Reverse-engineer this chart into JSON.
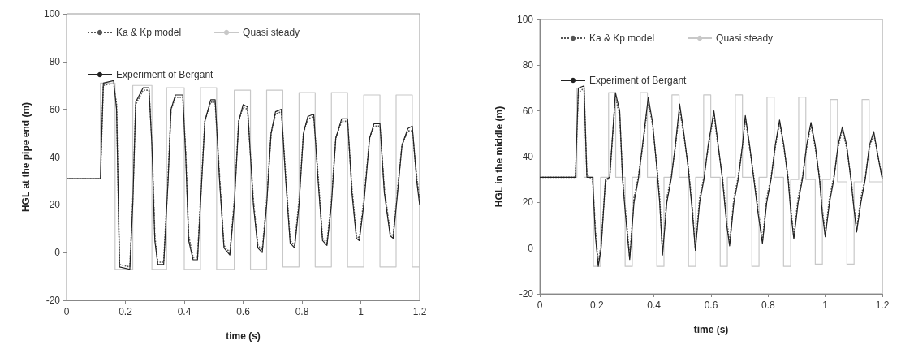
{
  "chart_data": [
    {
      "type": "line",
      "xlabel": "time (s)",
      "ylabel": "HGL at the pipe end (m)",
      "xlim": [
        0,
        1.2
      ],
      "xticks": [
        0,
        0.2,
        0.4,
        0.6,
        0.8,
        1,
        1.2
      ],
      "ylim": [
        -20,
        100
      ],
      "yticks": [
        -20,
        0,
        20,
        40,
        60,
        80,
        100
      ],
      "grid": false,
      "legend": "top left",
      "marker": "none",
      "series": [
        {
          "name": "Ka & Kp model",
          "color": "#555555",
          "line_style": "dotted",
          "x": [
            0,
            0.115,
            0.125,
            0.16,
            0.17,
            0.18,
            0.215,
            0.225,
            0.235,
            0.26,
            0.28,
            0.29,
            0.3,
            0.31,
            0.33,
            0.345,
            0.355,
            0.37,
            0.395,
            0.405,
            0.415,
            0.43,
            0.445,
            0.455,
            0.47,
            0.49,
            0.505,
            0.52,
            0.535,
            0.555,
            0.57,
            0.585,
            0.6,
            0.615,
            0.635,
            0.65,
            0.665,
            0.68,
            0.695,
            0.71,
            0.73,
            0.745,
            0.76,
            0.775,
            0.79,
            0.805,
            0.82,
            0.84,
            0.855,
            0.87,
            0.885,
            0.9,
            0.915,
            0.935,
            0.955,
            0.97,
            0.985,
            0.995,
            1.01,
            1.03,
            1.045,
            1.065,
            1.08,
            1.1,
            1.11,
            1.125,
            1.14,
            1.16,
            1.175,
            1.19,
            1.2
          ],
          "values": [
            31,
            31,
            70,
            71,
            62,
            -5,
            -6,
            22,
            62,
            68,
            68,
            47,
            7,
            -4,
            -4,
            32,
            60,
            65,
            65,
            42,
            7,
            -2,
            -2,
            22,
            55,
            63,
            63,
            32,
            3,
            0,
            22,
            55,
            61,
            60,
            22,
            3,
            1,
            22,
            50,
            58,
            59,
            32,
            5,
            3,
            22,
            50,
            56,
            57,
            32,
            6,
            4,
            22,
            48,
            55,
            55,
            27,
            7,
            6,
            22,
            48,
            53,
            53,
            27,
            8,
            7,
            27,
            45,
            51,
            51,
            32,
            22
          ]
        },
        {
          "name": "Quasi steady",
          "color": "#c8c8c8",
          "line_style": "solid",
          "x": [
            0,
            0.115,
            0.115,
            0.165,
            0.165,
            0.225,
            0.225,
            0.29,
            0.29,
            0.34,
            0.34,
            0.4,
            0.4,
            0.455,
            0.455,
            0.51,
            0.51,
            0.57,
            0.57,
            0.625,
            0.625,
            0.68,
            0.68,
            0.735,
            0.735,
            0.79,
            0.79,
            0.845,
            0.845,
            0.9,
            0.9,
            0.955,
            0.955,
            1.01,
            1.01,
            1.065,
            1.065,
            1.12,
            1.12,
            1.175,
            1.175,
            1.2
          ],
          "values": [
            31,
            31,
            71,
            71,
            -7,
            -7,
            70,
            70,
            -7,
            -7,
            69,
            69,
            -7,
            -7,
            69,
            69,
            -7,
            -7,
            68,
            68,
            -7,
            -7,
            68,
            68,
            -6,
            -6,
            67,
            67,
            -6,
            -6,
            67,
            67,
            -6,
            -6,
            66,
            66,
            -6,
            -6,
            66,
            66,
            -6,
            -6
          ]
        },
        {
          "name": "Experiment of Bergant",
          "color": "#222222",
          "line_style": "solid",
          "x": [
            0,
            0.115,
            0.125,
            0.16,
            0.17,
            0.18,
            0.215,
            0.225,
            0.235,
            0.26,
            0.28,
            0.29,
            0.3,
            0.31,
            0.33,
            0.345,
            0.355,
            0.37,
            0.395,
            0.405,
            0.415,
            0.43,
            0.445,
            0.455,
            0.47,
            0.49,
            0.505,
            0.52,
            0.535,
            0.555,
            0.57,
            0.585,
            0.6,
            0.615,
            0.635,
            0.65,
            0.665,
            0.68,
            0.695,
            0.71,
            0.73,
            0.745,
            0.76,
            0.775,
            0.79,
            0.805,
            0.82,
            0.84,
            0.855,
            0.87,
            0.885,
            0.9,
            0.915,
            0.935,
            0.955,
            0.97,
            0.985,
            0.995,
            1.01,
            1.03,
            1.045,
            1.065,
            1.08,
            1.1,
            1.11,
            1.125,
            1.14,
            1.16,
            1.175,
            1.19,
            1.2
          ],
          "values": [
            31,
            31,
            71,
            72,
            60,
            -6,
            -7,
            20,
            63,
            69,
            69,
            45,
            5,
            -5,
            -5,
            30,
            60,
            66,
            66,
            40,
            5,
            -3,
            -3,
            20,
            55,
            64,
            64,
            30,
            2,
            -1,
            20,
            55,
            62,
            61,
            20,
            2,
            0,
            20,
            50,
            59,
            60,
            30,
            4,
            2,
            20,
            50,
            57,
            58,
            30,
            5,
            3,
            20,
            48,
            56,
            56,
            25,
            6,
            5,
            20,
            48,
            54,
            54,
            25,
            7,
            6,
            25,
            45,
            52,
            53,
            30,
            20
          ]
        }
      ]
    },
    {
      "type": "line",
      "xlabel": "time (s)",
      "ylabel": "HGL in the middle (m)",
      "xlim": [
        0,
        1.2
      ],
      "xticks": [
        0,
        0.2,
        0.4,
        0.6,
        0.8,
        1,
        1.2
      ],
      "ylim": [
        -20,
        100
      ],
      "yticks": [
        -20,
        0,
        20,
        40,
        60,
        80,
        100
      ],
      "grid": false,
      "legend": "top left",
      "marker": "none",
      "series": [
        {
          "name": "Ka & Kp model",
          "color": "#555555",
          "line_style": "dotted",
          "x": [
            0,
            0.125,
            0.135,
            0.155,
            0.165,
            0.185,
            0.195,
            0.205,
            0.215,
            0.23,
            0.245,
            0.265,
            0.28,
            0.29,
            0.3,
            0.315,
            0.33,
            0.345,
            0.36,
            0.38,
            0.395,
            0.41,
            0.42,
            0.43,
            0.445,
            0.46,
            0.475,
            0.49,
            0.505,
            0.52,
            0.535,
            0.545,
            0.56,
            0.575,
            0.59,
            0.61,
            0.625,
            0.64,
            0.655,
            0.665,
            0.68,
            0.695,
            0.71,
            0.72,
            0.735,
            0.75,
            0.765,
            0.78,
            0.795,
            0.81,
            0.825,
            0.84,
            0.855,
            0.87,
            0.88,
            0.89,
            0.905,
            0.92,
            0.935,
            0.95,
            0.965,
            0.98,
            0.99,
            1.0,
            1.015,
            1.03,
            1.045,
            1.06,
            1.075,
            1.09,
            1.1,
            1.11,
            1.125,
            1.14,
            1.155,
            1.17,
            1.185,
            1.2
          ],
          "values": [
            31,
            31,
            68,
            70,
            32,
            30,
            8,
            -7,
            2,
            29,
            31,
            66,
            58,
            31,
            17,
            -4,
            22,
            31,
            44,
            64,
            54,
            36,
            22,
            -2,
            22,
            31,
            44,
            61,
            49,
            36,
            17,
            0,
            22,
            31,
            44,
            59,
            44,
            31,
            12,
            2,
            22,
            31,
            44,
            57,
            44,
            31,
            17,
            3,
            22,
            31,
            44,
            55,
            44,
            31,
            17,
            5,
            22,
            31,
            44,
            54,
            44,
            31,
            17,
            6,
            22,
            31,
            44,
            52,
            44,
            31,
            19,
            8,
            22,
            31,
            44,
            50,
            40,
            31
          ]
        },
        {
          "name": "Quasi steady",
          "color": "#c8c8c8",
          "line_style": "solid",
          "x": [
            0,
            0.13,
            0.13,
            0.155,
            0.155,
            0.188,
            0.188,
            0.213,
            0.213,
            0.241,
            0.241,
            0.266,
            0.266,
            0.299,
            0.299,
            0.324,
            0.324,
            0.352,
            0.352,
            0.377,
            0.377,
            0.41,
            0.41,
            0.435,
            0.435,
            0.463,
            0.463,
            0.488,
            0.488,
            0.521,
            0.521,
            0.546,
            0.546,
            0.574,
            0.574,
            0.599,
            0.599,
            0.632,
            0.632,
            0.657,
            0.657,
            0.685,
            0.685,
            0.71,
            0.71,
            0.743,
            0.743,
            0.768,
            0.768,
            0.796,
            0.796,
            0.821,
            0.821,
            0.854,
            0.854,
            0.879,
            0.879,
            0.907,
            0.907,
            0.932,
            0.932,
            0.965,
            0.965,
            0.99,
            0.99,
            1.018,
            1.018,
            1.043,
            1.043,
            1.076,
            1.076,
            1.101,
            1.101,
            1.129,
            1.129,
            1.154,
            1.154,
            1.2
          ],
          "values": [
            31,
            31,
            70,
            70,
            31,
            31,
            -8,
            -8,
            31,
            31,
            68,
            68,
            31,
            31,
            -8,
            -8,
            31,
            31,
            68,
            68,
            31,
            31,
            -8,
            -8,
            31,
            31,
            67,
            67,
            31,
            31,
            -8,
            -8,
            31,
            31,
            67,
            67,
            31,
            31,
            -8,
            -8,
            31,
            31,
            67,
            67,
            31,
            31,
            -8,
            -8,
            31,
            31,
            66,
            66,
            31,
            31,
            -8,
            -8,
            30,
            30,
            66,
            66,
            30,
            30,
            -7,
            -7,
            30,
            30,
            65,
            65,
            29,
            29,
            -7,
            -7,
            29,
            29,
            65,
            65,
            29,
            29
          ]
        },
        {
          "name": "Experiment of Bergant",
          "color": "#222222",
          "line_style": "solid",
          "x": [
            0,
            0.125,
            0.135,
            0.155,
            0.165,
            0.185,
            0.195,
            0.205,
            0.215,
            0.23,
            0.245,
            0.265,
            0.28,
            0.29,
            0.3,
            0.315,
            0.33,
            0.345,
            0.36,
            0.38,
            0.395,
            0.41,
            0.42,
            0.43,
            0.445,
            0.46,
            0.475,
            0.49,
            0.505,
            0.52,
            0.535,
            0.545,
            0.56,
            0.575,
            0.59,
            0.61,
            0.625,
            0.64,
            0.655,
            0.665,
            0.68,
            0.695,
            0.71,
            0.72,
            0.735,
            0.75,
            0.765,
            0.78,
            0.795,
            0.81,
            0.825,
            0.84,
            0.855,
            0.87,
            0.88,
            0.89,
            0.905,
            0.92,
            0.935,
            0.95,
            0.965,
            0.98,
            0.99,
            1.0,
            1.015,
            1.03,
            1.045,
            1.06,
            1.075,
            1.09,
            1.1,
            1.11,
            1.125,
            1.14,
            1.155,
            1.17,
            1.185,
            1.2
          ],
          "values": [
            31,
            31,
            70,
            71,
            31,
            31,
            5,
            -8,
            0,
            30,
            31,
            68,
            60,
            30,
            15,
            -5,
            20,
            30,
            45,
            66,
            55,
            35,
            20,
            -3,
            20,
            30,
            45,
            63,
            50,
            35,
            15,
            -1,
            20,
            30,
            45,
            60,
            45,
            30,
            10,
            1,
            20,
            30,
            45,
            58,
            45,
            30,
            15,
            2,
            20,
            30,
            45,
            56,
            45,
            30,
            15,
            4,
            20,
            30,
            45,
            55,
            45,
            30,
            15,
            5,
            20,
            30,
            45,
            53,
            45,
            30,
            18,
            7,
            20,
            30,
            45,
            51,
            40,
            30
          ]
        }
      ]
    }
  ]
}
